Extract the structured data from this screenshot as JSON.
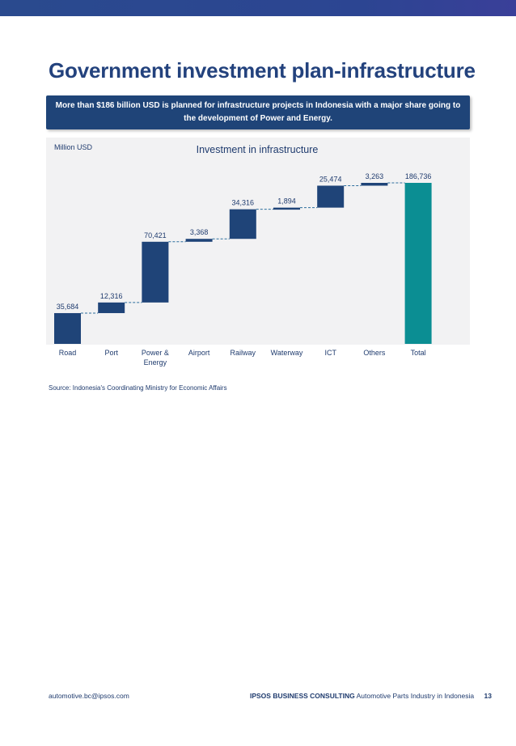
{
  "page": {
    "title": "Government investment plan-infrastructure",
    "banner": "More than $186 billion USD is planned for infrastructure projects in Indonesia with a major share going to the development of Power and Energy.",
    "source": "Source: Indonesia's Coordinating Ministry for Economic Affairs",
    "footer_email": "automotive.bc@ipsos.com",
    "footer_brand": "IPSOS BUSINESS CONSULTING",
    "footer_doc": "Automotive Parts Industry in Indonesia",
    "page_number": "13"
  },
  "colors": {
    "bar": "#1f4478",
    "total_bar": "#0b8e93",
    "connector": "#2d6f9e",
    "panel": "#f2f2f3",
    "text": "#1f3b6e"
  },
  "chart_data": {
    "type": "bar",
    "subtype": "waterfall",
    "title": "Investment in infrastructure",
    "ylabel": "Million USD",
    "categories": [
      "Road",
      "Port",
      "Power &\nEnergy",
      "Airport",
      "Railway",
      "Waterway",
      "ICT",
      "Others",
      "Total"
    ],
    "values": [
      35684,
      12316,
      70421,
      3368,
      34316,
      1894,
      25474,
      3263,
      186736
    ],
    "value_labels": [
      "35,684",
      "12,316",
      "70,421",
      "3,368",
      "34,316",
      "1,894",
      "25,474",
      "3,263",
      "186,736"
    ],
    "total_index": 8,
    "ylim": [
      0,
      190000
    ],
    "grid": false,
    "legend": "none"
  }
}
